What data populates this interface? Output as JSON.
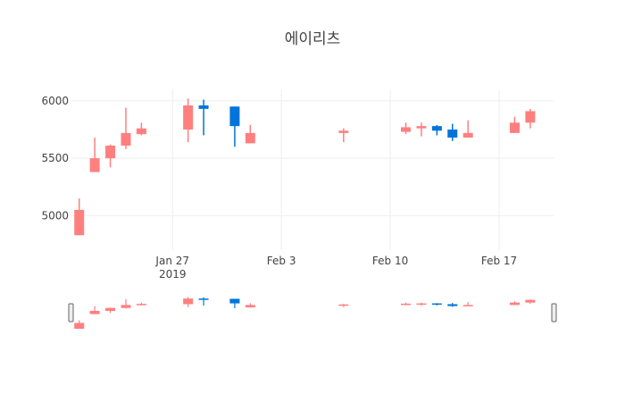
{
  "chart_data": {
    "type": "candlestick",
    "title": "에이리츠",
    "colors": {
      "increasing": "#ff7f7f",
      "decreasing": "#0074d9"
    },
    "y_ticks": [
      "5000",
      "5500",
      "6000"
    ],
    "x_ticks": [
      {
        "label": "Jan 27",
        "sublabel": "2019"
      },
      {
        "label": "Feb 3",
        "sublabel": ""
      },
      {
        "label": "Feb 10",
        "sublabel": ""
      },
      {
        "label": "Feb 17",
        "sublabel": ""
      }
    ],
    "range_slider": true,
    "grid": true,
    "series": [
      {
        "date": "2019-01-21",
        "open": 4830,
        "high": 5150,
        "low": 4830,
        "close": 5050
      },
      {
        "date": "2019-01-22",
        "open": 5380,
        "high": 5680,
        "low": 5380,
        "close": 5500
      },
      {
        "date": "2019-01-23",
        "open": 5500,
        "high": 5620,
        "low": 5420,
        "close": 5610
      },
      {
        "date": "2019-01-24",
        "open": 5610,
        "high": 5940,
        "low": 5580,
        "close": 5720
      },
      {
        "date": "2019-01-25",
        "open": 5710,
        "high": 5810,
        "low": 5700,
        "close": 5760
      },
      {
        "date": "2019-01-28",
        "open": 5750,
        "high": 6020,
        "low": 5640,
        "close": 5960
      },
      {
        "date": "2019-01-29",
        "open": 5960,
        "high": 6010,
        "low": 5700,
        "close": 5930
      },
      {
        "date": "2019-01-31",
        "open": 5950,
        "high": 5950,
        "low": 5600,
        "close": 5780
      },
      {
        "date": "2019-02-01",
        "open": 5630,
        "high": 5790,
        "low": 5630,
        "close": 5720
      },
      {
        "date": "2019-02-07",
        "open": 5720,
        "high": 5760,
        "low": 5640,
        "close": 5740
      },
      {
        "date": "2019-02-11",
        "open": 5730,
        "high": 5810,
        "low": 5710,
        "close": 5770
      },
      {
        "date": "2019-02-12",
        "open": 5760,
        "high": 5810,
        "low": 5690,
        "close": 5780
      },
      {
        "date": "2019-02-13",
        "open": 5780,
        "high": 5790,
        "low": 5700,
        "close": 5740
      },
      {
        "date": "2019-02-14",
        "open": 5750,
        "high": 5800,
        "low": 5650,
        "close": 5680
      },
      {
        "date": "2019-02-15",
        "open": 5680,
        "high": 5830,
        "low": 5680,
        "close": 5720
      },
      {
        "date": "2019-02-18",
        "open": 5720,
        "high": 5860,
        "low": 5720,
        "close": 5810
      },
      {
        "date": "2019-02-19",
        "open": 5810,
        "high": 5930,
        "low": 5760,
        "close": 5910
      }
    ]
  }
}
